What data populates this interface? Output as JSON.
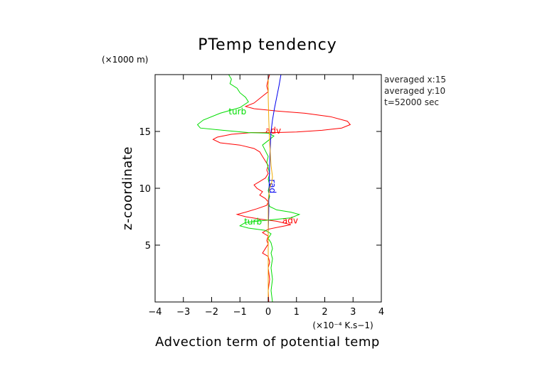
{
  "chart_data": {
    "type": "line",
    "title": "PTemp tendency",
    "xlabel": "Advection term of potential temp",
    "ylabel": "z-coordinate",
    "x_scale_label": "(×10⁻⁴ K.s−1)",
    "y_scale_label": "(×1000 m)",
    "xlim": [
      -4,
      4
    ],
    "ylim": [
      0,
      20
    ],
    "x_ticks": [
      "−4",
      "−3",
      "−2",
      "−1",
      "0",
      "1",
      "2",
      "3",
      "4"
    ],
    "y_ticks": [
      "5",
      "10",
      "15"
    ],
    "info_lines": [
      "averaged  x:15",
      "averaged  y:10",
      "t=52000 sec"
    ],
    "series": [
      {
        "name": "adv",
        "color": "#ff0000",
        "label_at": [
          [
            -0.1,
            14.8
          ],
          [
            0.5,
            6.9
          ]
        ],
        "points": [
          [
            0.05,
            20
          ],
          [
            0.0,
            19.6
          ],
          [
            -0.05,
            19.0
          ],
          [
            0.0,
            18.5
          ],
          [
            -0.2,
            18.1
          ],
          [
            -0.5,
            17.5
          ],
          [
            -0.8,
            17.2
          ],
          [
            -0.5,
            17.0
          ],
          [
            0.3,
            16.8
          ],
          [
            1.3,
            16.6
          ],
          [
            2.2,
            16.3
          ],
          [
            2.8,
            15.9
          ],
          [
            2.9,
            15.6
          ],
          [
            2.6,
            15.3
          ],
          [
            1.9,
            15.1
          ],
          [
            1.0,
            14.95
          ],
          [
            0.2,
            14.9
          ],
          [
            -0.6,
            14.9
          ],
          [
            -1.3,
            14.75
          ],
          [
            -1.8,
            14.5
          ],
          [
            -1.95,
            14.3
          ],
          [
            -1.7,
            14.0
          ],
          [
            -1.0,
            13.8
          ],
          [
            -0.5,
            13.5
          ],
          [
            -0.3,
            13.2
          ],
          [
            -0.2,
            12.8
          ],
          [
            -0.1,
            12.4
          ],
          [
            0.0,
            12.0
          ],
          [
            -0.05,
            11.6
          ],
          [
            0.0,
            11.3
          ],
          [
            -0.1,
            10.9
          ],
          [
            -0.3,
            10.6
          ],
          [
            -0.5,
            10.3
          ],
          [
            -0.4,
            10.0
          ],
          [
            -0.2,
            9.7
          ],
          [
            -0.3,
            9.4
          ],
          [
            -0.1,
            9.1
          ],
          [
            0.0,
            8.8
          ],
          [
            -0.05,
            8.5
          ],
          [
            -0.4,
            8.2
          ],
          [
            -0.8,
            7.9
          ],
          [
            -1.1,
            7.7
          ],
          [
            -0.8,
            7.5
          ],
          [
            -0.3,
            7.3
          ],
          [
            0.3,
            7.1
          ],
          [
            0.8,
            6.8
          ],
          [
            0.4,
            6.6
          ],
          [
            0.0,
            6.4
          ],
          [
            -0.2,
            6.1
          ],
          [
            0.0,
            5.8
          ],
          [
            -0.05,
            5.4
          ],
          [
            0.0,
            5.1
          ],
          [
            -0.1,
            4.7
          ],
          [
            -0.2,
            4.3
          ],
          [
            0.0,
            4.0
          ],
          [
            0.05,
            3.5
          ],
          [
            0.0,
            3.0
          ],
          [
            0.05,
            2.0
          ],
          [
            0.0,
            1.0
          ],
          [
            0.02,
            0.0
          ]
        ]
      },
      {
        "name": "turb",
        "color": "#00dd00",
        "label_at": [
          [
            -1.4,
            16.5
          ],
          [
            -0.85,
            6.8
          ]
        ],
        "points": [
          [
            -1.4,
            20
          ],
          [
            -1.3,
            19.6
          ],
          [
            -1.35,
            19.2
          ],
          [
            -1.1,
            18.8
          ],
          [
            -1.0,
            18.4
          ],
          [
            -0.8,
            18.0
          ],
          [
            -0.7,
            17.6
          ],
          [
            -1.0,
            17.1
          ],
          [
            -1.7,
            16.6
          ],
          [
            -2.3,
            16.0
          ],
          [
            -2.5,
            15.6
          ],
          [
            -2.4,
            15.3
          ],
          [
            -1.6,
            15.1
          ],
          [
            -0.7,
            14.9
          ],
          [
            0.0,
            14.85
          ],
          [
            0.2,
            14.6
          ],
          [
            0.0,
            14.2
          ],
          [
            -0.2,
            13.8
          ],
          [
            -0.1,
            13.3
          ],
          [
            0.0,
            12.8
          ],
          [
            -0.05,
            12.3
          ],
          [
            0.0,
            11.8
          ],
          [
            0.05,
            11.3
          ],
          [
            0.0,
            10.8
          ],
          [
            0.05,
            10.3
          ],
          [
            0.0,
            9.8
          ],
          [
            0.05,
            9.3
          ],
          [
            0.0,
            8.8
          ],
          [
            0.05,
            8.4
          ],
          [
            0.3,
            8.1
          ],
          [
            0.8,
            7.9
          ],
          [
            1.1,
            7.7
          ],
          [
            0.8,
            7.4
          ],
          [
            0.0,
            7.2
          ],
          [
            -0.8,
            7.0
          ],
          [
            -1.0,
            6.7
          ],
          [
            -0.7,
            6.5
          ],
          [
            -0.1,
            6.3
          ],
          [
            0.1,
            6.0
          ],
          [
            0.0,
            5.6
          ],
          [
            0.1,
            5.2
          ],
          [
            0.15,
            4.7
          ],
          [
            0.1,
            4.3
          ],
          [
            0.15,
            3.8
          ],
          [
            0.1,
            3.0
          ],
          [
            0.15,
            2.0
          ],
          [
            0.1,
            1.0
          ],
          [
            0.15,
            0.0
          ]
        ]
      },
      {
        "name": "rad",
        "color": "#0000ee",
        "label_at": [
          [
            0.05,
            10.8
          ]
        ],
        "points": [
          [
            0.45,
            20
          ],
          [
            0.38,
            19
          ],
          [
            0.3,
            18
          ],
          [
            0.22,
            17
          ],
          [
            0.15,
            16
          ],
          [
            0.1,
            15
          ],
          [
            0.08,
            14
          ],
          [
            0.06,
            13
          ],
          [
            0.05,
            12
          ],
          [
            0.04,
            11
          ],
          [
            0.03,
            10
          ],
          [
            0.02,
            9
          ],
          [
            0.02,
            8
          ],
          [
            0.01,
            7
          ],
          [
            0.0,
            6
          ],
          [
            0.0,
            5
          ],
          [
            0.0,
            4
          ],
          [
            0.0,
            3
          ],
          [
            0.0,
            2
          ],
          [
            0.0,
            1
          ],
          [
            0.0,
            0
          ]
        ]
      },
      {
        "name": "",
        "color": "#eeaa00",
        "label_at": [],
        "points": [
          [
            0.0,
            20
          ],
          [
            0.0,
            18
          ],
          [
            0.02,
            16
          ],
          [
            0.05,
            14
          ],
          [
            0.1,
            12
          ],
          [
            0.15,
            11
          ],
          [
            0.12,
            10.5
          ],
          [
            0.05,
            10
          ],
          [
            0.0,
            9
          ],
          [
            0.0,
            7
          ],
          [
            0.0,
            5
          ],
          [
            0.0,
            3
          ],
          [
            0.0,
            0
          ]
        ]
      }
    ]
  }
}
